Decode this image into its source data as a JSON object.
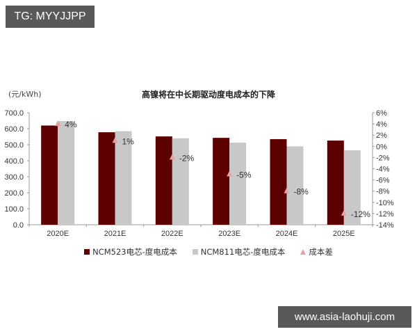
{
  "watermarks": {
    "top": "TG: MYYJJPP",
    "bottom": "www.asia-laohuji.com"
  },
  "colors": {
    "ncm523": "#5c0000",
    "ncm811": "#c8c8c8",
    "diff": "#e8a0a0",
    "axis": "#999999"
  },
  "chart_data": {
    "type": "bar",
    "title": "高镍将在中长期驱动度电成本的下降",
    "ylabel": "(元/kWh)",
    "xlabel": "",
    "categories": [
      "2020E",
      "2021E",
      "2022E",
      "2023E",
      "2024E",
      "2025E"
    ],
    "series": [
      {
        "name": "NCM523电芯-度电成本",
        "type": "bar",
        "axis": "left",
        "values": [
          620,
          578,
          552,
          543,
          535,
          526
        ]
      },
      {
        "name": "NCM811电芯-度电成本",
        "type": "bar",
        "axis": "left",
        "values": [
          648,
          585,
          540,
          513,
          490,
          465
        ]
      },
      {
        "name": "成本差",
        "type": "scatter",
        "axis": "right",
        "values": [
          4,
          1,
          -2,
          -5,
          -8,
          -12
        ],
        "labels": [
          "4%",
          "1%",
          "-2%",
          "-5%",
          "-8%",
          "-12%"
        ]
      }
    ],
    "ylim": [
      0,
      700
    ],
    "y_ticks": [
      "700.0",
      "600.0",
      "500.0",
      "400.0",
      "300.0",
      "200.0",
      "100.0",
      "0.0"
    ],
    "y2lim": [
      -14,
      6
    ],
    "y2_ticks": [
      "6%",
      "4%",
      "2%",
      "0%",
      "-2%",
      "-4%",
      "-6%",
      "-8%",
      "-10%",
      "-12%",
      "-14%"
    ],
    "grid": false,
    "legend_position": "bottom"
  }
}
